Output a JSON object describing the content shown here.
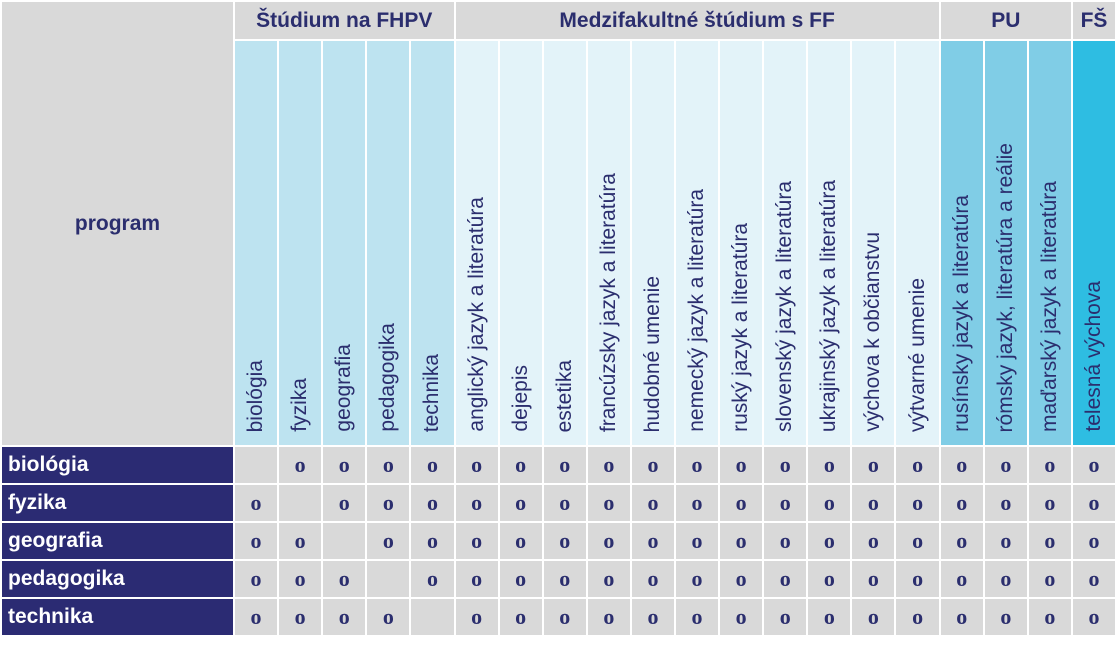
{
  "corner_label": "program",
  "groups": [
    {
      "label": "Štúdium na FHPV",
      "span": 5,
      "cls": "g-fhpv"
    },
    {
      "label": "Medzifakultné štúdium s FF",
      "span": 11,
      "cls": "g-ff"
    },
    {
      "label": "PU",
      "span": 3,
      "cls": "g-pu"
    },
    {
      "label": "FŠ",
      "span": 1,
      "cls": "g-fs"
    }
  ],
  "subjects": [
    "biológia",
    "fyzika",
    "geografia",
    "pedagogika",
    "technika",
    "anglický jazyk a literatúra",
    "dejepis",
    "estetika",
    "francúzsky jazyk a literatúra",
    "hudobné umenie",
    "nemecký jazyk a literatúra",
    "ruský jazyk a literatúra",
    "slovenský jazyk a literatúra",
    "ukrajinský jazyk a literatúra",
    "výchova k občianstvu",
    "výtvarné umenie",
    "rusínsky jazyk a literatúra",
    "rómsky jazyk, literatúra a reálie",
    "maďarský jazyk a literatúra",
    "telesná výchova"
  ],
  "rows": [
    {
      "label": "biológia",
      "cells": [
        "",
        "o",
        "o",
        "o",
        "o",
        "o",
        "o",
        "o",
        "o",
        "o",
        "o",
        "o",
        "o",
        "o",
        "o",
        "o",
        "o",
        "o",
        "o",
        "o"
      ]
    },
    {
      "label": "fyzika",
      "cells": [
        "o",
        "",
        "o",
        "o",
        "o",
        "o",
        "o",
        "o",
        "o",
        "o",
        "o",
        "o",
        "o",
        "o",
        "o",
        "o",
        "o",
        "o",
        "o",
        "o"
      ]
    },
    {
      "label": "geografia",
      "cells": [
        "o",
        "o",
        "",
        "o",
        "o",
        "o",
        "o",
        "o",
        "o",
        "o",
        "o",
        "o",
        "o",
        "o",
        "o",
        "o",
        "o",
        "o",
        "o",
        "o"
      ]
    },
    {
      "label": "pedagogika",
      "cells": [
        "o",
        "o",
        "o",
        "",
        "o",
        "o",
        "o",
        "o",
        "o",
        "o",
        "o",
        "o",
        "o",
        "o",
        "o",
        "o",
        "o",
        "o",
        "o",
        "o"
      ]
    },
    {
      "label": "technika",
      "cells": [
        "o",
        "o",
        "o",
        "o",
        "",
        "o",
        "o",
        "o",
        "o",
        "o",
        "o",
        "o",
        "o",
        "o",
        "o",
        "o",
        "o",
        "o",
        "o",
        "o"
      ]
    }
  ],
  "colors": {
    "fhpv": "#bde3f0",
    "ff": "#e3f3f9",
    "pu": "#80cde6",
    "fs": "#2ebde2",
    "row_head": "#2b2b73",
    "text": "#2b2e6e",
    "cell": "#d9d9d9"
  }
}
